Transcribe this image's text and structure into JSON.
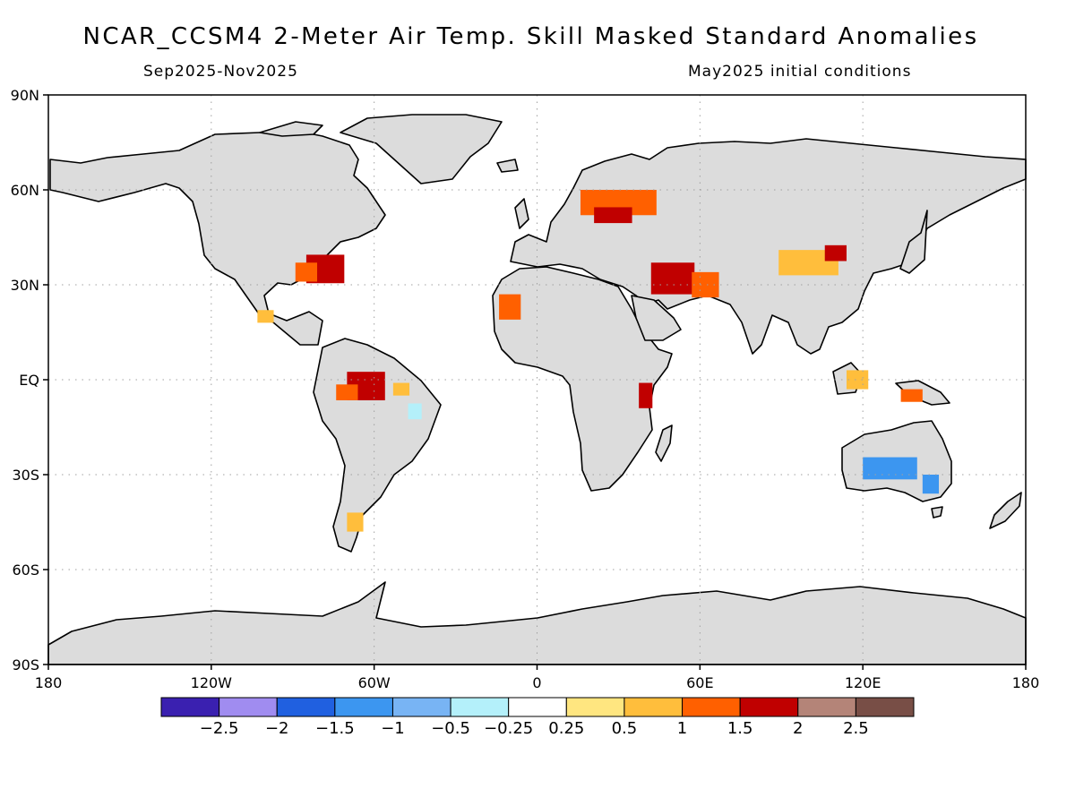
{
  "header": {
    "title": "NCAR_CCSM4 2-Meter Air Temp. Skill Masked Standard Anomalies",
    "subtitle_left": "Sep2025-Nov2025",
    "subtitle_right": "May2025 initial conditions"
  },
  "map": {
    "projection": "equirectangular",
    "lon_range": [
      -180,
      180
    ],
    "lat_range": [
      -90,
      90
    ],
    "land_color": "#dcdcdc",
    "ocean_color": "#ffffff",
    "grid": "dotted",
    "lon_ticks": [
      {
        "lon": -180,
        "label": "180"
      },
      {
        "lon": -120,
        "label": "120W"
      },
      {
        "lon": -60,
        "label": "60W"
      },
      {
        "lon": 0,
        "label": "0"
      },
      {
        "lon": 60,
        "label": "60E"
      },
      {
        "lon": 120,
        "label": "120E"
      },
      {
        "lon": 180,
        "label": "180"
      }
    ],
    "lat_ticks": [
      {
        "lat": 90,
        "label": "90N"
      },
      {
        "lat": 60,
        "label": "60N"
      },
      {
        "lat": 30,
        "label": "30N"
      },
      {
        "lat": 0,
        "label": "EQ"
      },
      {
        "lat": -30,
        "label": "30S"
      },
      {
        "lat": -60,
        "label": "60S"
      },
      {
        "lat": -90,
        "label": "90S"
      }
    ]
  },
  "colorbar": {
    "colors": [
      "#3a20b0",
      "#a08cf0",
      "#2060e0",
      "#3c96f0",
      "#78b4f4",
      "#b4f0fa",
      "#ffffff",
      "#ffe680",
      "#ffbe3c",
      "#ff6000",
      "#c00000",
      "#b48478",
      "#784e46"
    ],
    "labels": [
      "-2.5",
      "-2",
      "-1.5",
      "-1",
      "-0.5",
      "-0.25",
      "0.25",
      "0.5",
      "1",
      "1.5",
      "2",
      "2.5"
    ]
  },
  "anomaly_regions": [
    {
      "lon": -78,
      "lat": 35,
      "w": 14,
      "h": 9,
      "level": "2"
    },
    {
      "lon": -85,
      "lat": 34,
      "w": 8,
      "h": 6,
      "level": "1.5"
    },
    {
      "lon": -100,
      "lat": 20,
      "w": 6,
      "h": 4,
      "level": "1"
    },
    {
      "lon": -63,
      "lat": -2,
      "w": 14,
      "h": 9,
      "level": "2"
    },
    {
      "lon": -70,
      "lat": -4,
      "w": 8,
      "h": 5,
      "level": "1.5"
    },
    {
      "lon": -50,
      "lat": -3,
      "w": 6,
      "h": 4,
      "level": "1"
    },
    {
      "lon": -45,
      "lat": -10,
      "w": 5,
      "h": 5,
      "level": "-0.5"
    },
    {
      "lon": -67,
      "lat": -45,
      "w": 6,
      "h": 6,
      "level": "1"
    },
    {
      "lon": 30,
      "lat": 56,
      "w": 28,
      "h": 8,
      "level": "1.5"
    },
    {
      "lon": 28,
      "lat": 52,
      "w": 14,
      "h": 5,
      "level": "2"
    },
    {
      "lon": 50,
      "lat": 32,
      "w": 16,
      "h": 10,
      "level": "2"
    },
    {
      "lon": 62,
      "lat": 30,
      "w": 10,
      "h": 8,
      "level": "1.5"
    },
    {
      "lon": 100,
      "lat": 37,
      "w": 22,
      "h": 8,
      "level": "1"
    },
    {
      "lon": 110,
      "lat": 40,
      "w": 8,
      "h": 5,
      "level": "2"
    },
    {
      "lon": 40,
      "lat": -5,
      "w": 5,
      "h": 8,
      "level": "2"
    },
    {
      "lon": -10,
      "lat": 23,
      "w": 8,
      "h": 8,
      "level": "1.5"
    },
    {
      "lon": 118,
      "lat": 0,
      "w": 8,
      "h": 6,
      "level": "1"
    },
    {
      "lon": 138,
      "lat": -5,
      "w": 8,
      "h": 4,
      "level": "1.5"
    },
    {
      "lon": 130,
      "lat": -28,
      "w": 20,
      "h": 7,
      "level": "-1.5"
    },
    {
      "lon": 145,
      "lat": -33,
      "w": 6,
      "h": 6,
      "level": "-1.5"
    }
  ]
}
